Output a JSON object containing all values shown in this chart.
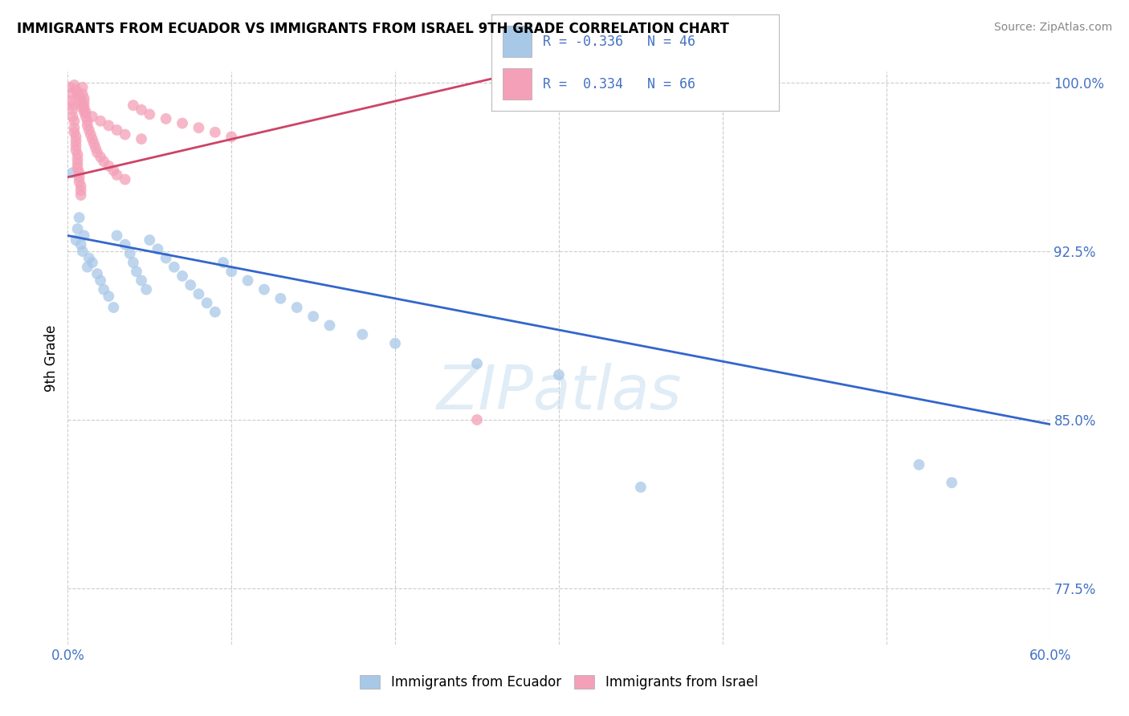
{
  "title": "IMMIGRANTS FROM ECUADOR VS IMMIGRANTS FROM ISRAEL 9TH GRADE CORRELATION CHART",
  "source": "Source: ZipAtlas.com",
  "ylabel": "9th Grade",
  "xlim": [
    0.0,
    0.6
  ],
  "ylim": [
    0.75,
    1.005
  ],
  "xticks": [
    0.0,
    0.1,
    0.2,
    0.3,
    0.4,
    0.5,
    0.6
  ],
  "xticklabels": [
    "0.0%",
    "",
    "",
    "",
    "",
    "",
    "60.0%"
  ],
  "ytick_vals": [
    0.775,
    0.85,
    0.925,
    1.0
  ],
  "ytick_labels": [
    "77.5%",
    "85.0%",
    "92.5%",
    "100.0%"
  ],
  "blue_R": "-0.336",
  "blue_N": "46",
  "pink_R": "0.334",
  "pink_N": "66",
  "blue_color": "#a8c8e8",
  "pink_color": "#f4a0b8",
  "blue_line_color": "#3366cc",
  "pink_line_color": "#cc4466",
  "watermark": "ZIPatlas",
  "legend_label_blue": "Immigrants from Ecuador",
  "legend_label_pink": "Immigrants from Israel",
  "blue_scatter_x": [
    0.003,
    0.005,
    0.006,
    0.007,
    0.008,
    0.009,
    0.01,
    0.012,
    0.013,
    0.015,
    0.018,
    0.02,
    0.022,
    0.025,
    0.028,
    0.03,
    0.035,
    0.038,
    0.04,
    0.042,
    0.045,
    0.048,
    0.05,
    0.055,
    0.06,
    0.065,
    0.07,
    0.075,
    0.08,
    0.085,
    0.09,
    0.095,
    0.1,
    0.11,
    0.12,
    0.13,
    0.14,
    0.15,
    0.16,
    0.18,
    0.2,
    0.25,
    0.3,
    0.35,
    0.52,
    0.54
  ],
  "blue_scatter_y": [
    0.96,
    0.93,
    0.935,
    0.94,
    0.928,
    0.925,
    0.932,
    0.918,
    0.922,
    0.92,
    0.915,
    0.912,
    0.908,
    0.905,
    0.9,
    0.932,
    0.928,
    0.924,
    0.92,
    0.916,
    0.912,
    0.908,
    0.93,
    0.926,
    0.922,
    0.918,
    0.914,
    0.91,
    0.906,
    0.902,
    0.898,
    0.92,
    0.916,
    0.912,
    0.908,
    0.904,
    0.9,
    0.896,
    0.892,
    0.888,
    0.884,
    0.875,
    0.87,
    0.82,
    0.83,
    0.822
  ],
  "pink_scatter_x": [
    0.001,
    0.002,
    0.002,
    0.003,
    0.003,
    0.003,
    0.004,
    0.004,
    0.004,
    0.005,
    0.005,
    0.005,
    0.005,
    0.006,
    0.006,
    0.006,
    0.006,
    0.007,
    0.007,
    0.007,
    0.008,
    0.008,
    0.008,
    0.009,
    0.009,
    0.01,
    0.01,
    0.01,
    0.011,
    0.011,
    0.012,
    0.012,
    0.013,
    0.014,
    0.015,
    0.016,
    0.017,
    0.018,
    0.02,
    0.022,
    0.025,
    0.028,
    0.03,
    0.035,
    0.04,
    0.045,
    0.05,
    0.06,
    0.07,
    0.08,
    0.09,
    0.1,
    0.004,
    0.005,
    0.006,
    0.007,
    0.008,
    0.009,
    0.25,
    0.01,
    0.015,
    0.02,
    0.025,
    0.03,
    0.035,
    0.045
  ],
  "pink_scatter_y": [
    0.998,
    0.995,
    0.992,
    0.99,
    0.988,
    0.985,
    0.983,
    0.98,
    0.978,
    0.976,
    0.974,
    0.972,
    0.97,
    0.968,
    0.966,
    0.964,
    0.962,
    0.96,
    0.958,
    0.956,
    0.954,
    0.952,
    0.95,
    0.998,
    0.995,
    0.993,
    0.991,
    0.989,
    0.987,
    0.985,
    0.983,
    0.981,
    0.979,
    0.977,
    0.975,
    0.973,
    0.971,
    0.969,
    0.967,
    0.965,
    0.963,
    0.961,
    0.959,
    0.957,
    0.99,
    0.988,
    0.986,
    0.984,
    0.982,
    0.98,
    0.978,
    0.976,
    0.999,
    0.997,
    0.995,
    0.993,
    0.991,
    0.989,
    0.85,
    0.987,
    0.985,
    0.983,
    0.981,
    0.979,
    0.977,
    0.975
  ],
  "blue_trend_x": [
    0.0,
    0.6
  ],
  "blue_trend_y": [
    0.932,
    0.848
  ],
  "pink_trend_x": [
    0.0,
    0.26
  ],
  "pink_trend_y": [
    0.958,
    1.002
  ]
}
